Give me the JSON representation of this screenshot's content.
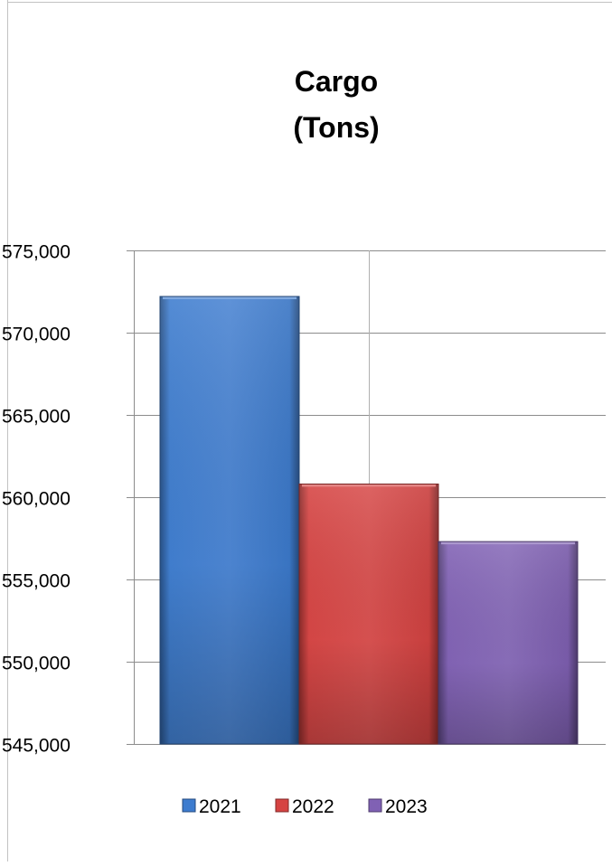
{
  "chart_data": {
    "type": "bar",
    "title_lines": [
      "Cargo",
      "(Tons)"
    ],
    "xlabel": "",
    "ylabel": "",
    "ylim": [
      545000,
      575000
    ],
    "yticks": [
      545000,
      550000,
      555000,
      560000,
      565000,
      570000,
      575000
    ],
    "y_tick_labels": [
      "545,000",
      "550,000",
      "555,000",
      "560,000",
      "565,000",
      "570,000",
      "575,000"
    ],
    "grid": true,
    "legend_position": "bottom",
    "series": [
      {
        "name": "2021",
        "value": 572200,
        "color": "#3d7ccf"
      },
      {
        "name": "2022",
        "value": 560800,
        "color": "#d64342"
      },
      {
        "name": "2023",
        "value": 557300,
        "color": "#8061b4"
      }
    ]
  }
}
